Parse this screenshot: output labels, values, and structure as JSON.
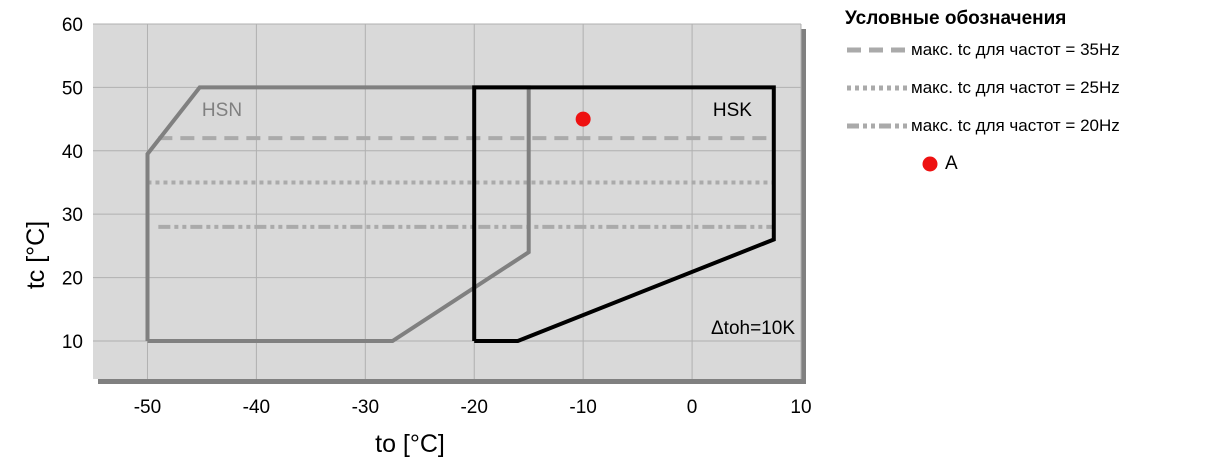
{
  "chart_data": {
    "type": "line",
    "xlabel": "to [°C]",
    "ylabel": "tc [°C]",
    "xlim": [
      -55,
      10
    ],
    "ylim": [
      4,
      60
    ],
    "xticks": [
      -50,
      -40,
      -30,
      -20,
      -10,
      0,
      10
    ],
    "yticks": [
      10,
      20,
      30,
      40,
      50,
      60
    ],
    "grid": true,
    "legend_position": "right",
    "legend_title": "Условные обозначения",
    "annotation": "Δtoh=10K",
    "envelopes": [
      {
        "label": "HSN",
        "color": "#808080",
        "points": [
          [
            -50,
            10
          ],
          [
            -50,
            39.5
          ],
          [
            -45.2,
            50
          ],
          [
            -15,
            50
          ],
          [
            -15,
            24
          ],
          [
            -27.5,
            10
          ],
          [
            -50,
            10
          ]
        ]
      },
      {
        "label": "HSK",
        "color": "#000000",
        "points": [
          [
            -20,
            10
          ],
          [
            -20,
            50
          ],
          [
            7.5,
            50
          ],
          [
            7.5,
            26
          ],
          [
            -16,
            10
          ],
          [
            -20,
            10
          ]
        ]
      }
    ],
    "series": [
      {
        "name": "макс. tc для частот = 20Hz",
        "style": "dash-dot",
        "color": "#aaaaaa",
        "x": [
          -49,
          7.5
        ],
        "y": [
          28,
          28
        ]
      },
      {
        "name": "макс. tc для частот = 25Hz",
        "style": "dotted",
        "color": "#aaaaaa",
        "x": [
          -50,
          7.5
        ],
        "y": [
          35,
          35
        ]
      },
      {
        "name": "макс. tc для частот = 35Hz",
        "style": "dashed",
        "color": "#aaaaaa",
        "x": [
          -49,
          7.5
        ],
        "y": [
          42,
          42
        ]
      }
    ],
    "points": [
      {
        "name": "A",
        "x": -10,
        "y": 45,
        "color": "#ee1111"
      }
    ]
  }
}
